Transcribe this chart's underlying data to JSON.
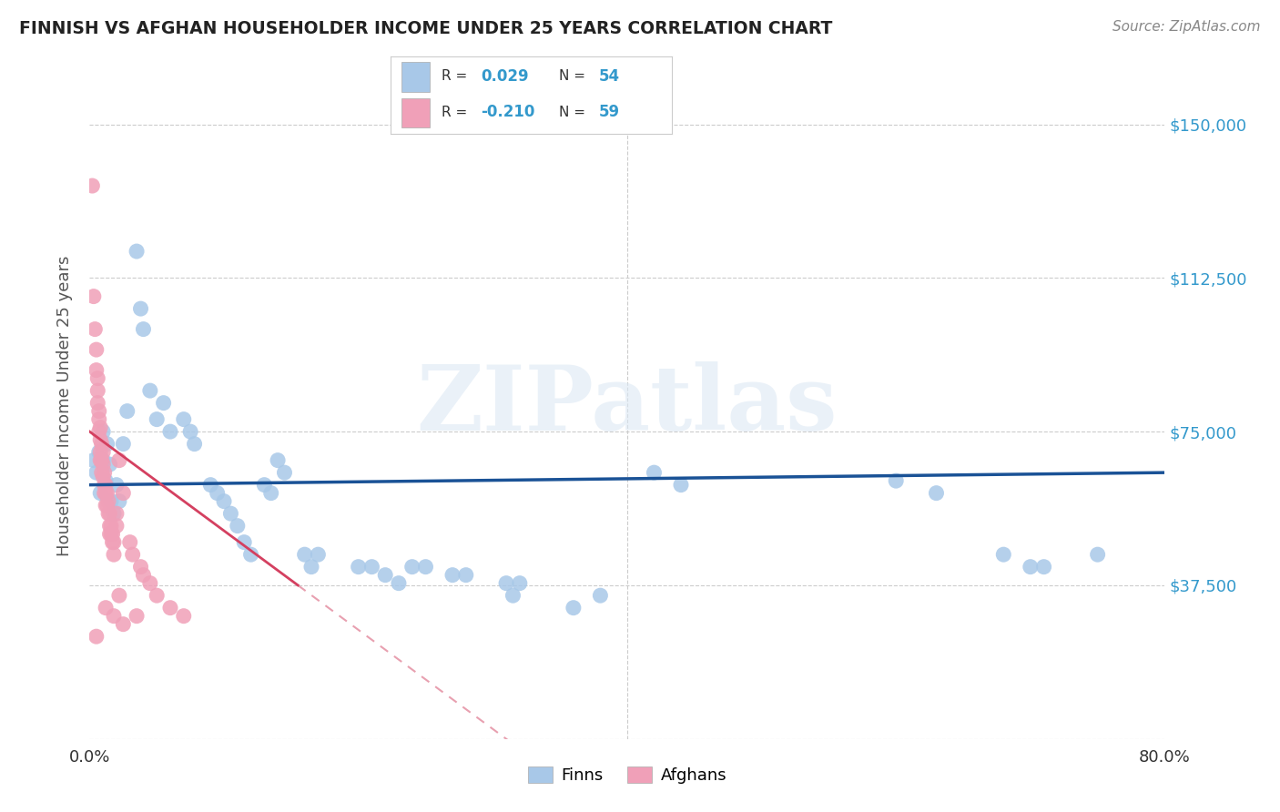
{
  "title": "FINNISH VS AFGHAN HOUSEHOLDER INCOME UNDER 25 YEARS CORRELATION CHART",
  "source": "Source: ZipAtlas.com",
  "ylabel": "Householder Income Under 25 years",
  "xlim": [
    0.0,
    0.8
  ],
  "ylim": [
    0,
    162500
  ],
  "yticks": [
    0,
    37500,
    75000,
    112500,
    150000
  ],
  "xticks": [
    0.0,
    0.1,
    0.2,
    0.3,
    0.4,
    0.5,
    0.6,
    0.7,
    0.8
  ],
  "finn_color": "#a8c8e8",
  "afghan_color": "#f0a0b8",
  "finn_line_color": "#1a5296",
  "afghan_line_solid_color": "#d44060",
  "afghan_line_dash_color": "#e8a0b0",
  "watermark_text": "ZIPatlas",
  "background_color": "#ffffff",
  "finn_scatter": [
    [
      0.003,
      68000
    ],
    [
      0.005,
      65000
    ],
    [
      0.007,
      70000
    ],
    [
      0.008,
      60000
    ],
    [
      0.01,
      75000
    ],
    [
      0.01,
      68000
    ],
    [
      0.012,
      63000
    ],
    [
      0.013,
      72000
    ],
    [
      0.015,
      67000
    ],
    [
      0.016,
      58000
    ],
    [
      0.018,
      55000
    ],
    [
      0.02,
      62000
    ],
    [
      0.022,
      58000
    ],
    [
      0.025,
      72000
    ],
    [
      0.028,
      80000
    ],
    [
      0.035,
      119000
    ],
    [
      0.038,
      105000
    ],
    [
      0.04,
      100000
    ],
    [
      0.045,
      85000
    ],
    [
      0.05,
      78000
    ],
    [
      0.055,
      82000
    ],
    [
      0.06,
      75000
    ],
    [
      0.07,
      78000
    ],
    [
      0.075,
      75000
    ],
    [
      0.078,
      72000
    ],
    [
      0.09,
      62000
    ],
    [
      0.095,
      60000
    ],
    [
      0.1,
      58000
    ],
    [
      0.105,
      55000
    ],
    [
      0.11,
      52000
    ],
    [
      0.115,
      48000
    ],
    [
      0.12,
      45000
    ],
    [
      0.13,
      62000
    ],
    [
      0.135,
      60000
    ],
    [
      0.14,
      68000
    ],
    [
      0.145,
      65000
    ],
    [
      0.16,
      45000
    ],
    [
      0.165,
      42000
    ],
    [
      0.17,
      45000
    ],
    [
      0.2,
      42000
    ],
    [
      0.21,
      42000
    ],
    [
      0.22,
      40000
    ],
    [
      0.23,
      38000
    ],
    [
      0.24,
      42000
    ],
    [
      0.25,
      42000
    ],
    [
      0.27,
      40000
    ],
    [
      0.28,
      40000
    ],
    [
      0.31,
      38000
    ],
    [
      0.315,
      35000
    ],
    [
      0.32,
      38000
    ],
    [
      0.36,
      32000
    ],
    [
      0.38,
      35000
    ],
    [
      0.42,
      65000
    ],
    [
      0.44,
      62000
    ],
    [
      0.6,
      63000
    ],
    [
      0.63,
      60000
    ],
    [
      0.68,
      45000
    ],
    [
      0.7,
      42000
    ],
    [
      0.71,
      42000
    ],
    [
      0.75,
      45000
    ]
  ],
  "afghan_scatter": [
    [
      0.002,
      135000
    ],
    [
      0.003,
      108000
    ],
    [
      0.004,
      100000
    ],
    [
      0.005,
      95000
    ],
    [
      0.005,
      90000
    ],
    [
      0.006,
      88000
    ],
    [
      0.006,
      85000
    ],
    [
      0.006,
      82000
    ],
    [
      0.007,
      80000
    ],
    [
      0.007,
      78000
    ],
    [
      0.007,
      75000
    ],
    [
      0.008,
      76000
    ],
    [
      0.008,
      73000
    ],
    [
      0.008,
      70000
    ],
    [
      0.008,
      68000
    ],
    [
      0.009,
      72000
    ],
    [
      0.009,
      68000
    ],
    [
      0.009,
      65000
    ],
    [
      0.01,
      70000
    ],
    [
      0.01,
      67000
    ],
    [
      0.01,
      64000
    ],
    [
      0.011,
      65000
    ],
    [
      0.011,
      62000
    ],
    [
      0.011,
      60000
    ],
    [
      0.012,
      62000
    ],
    [
      0.012,
      60000
    ],
    [
      0.012,
      57000
    ],
    [
      0.013,
      60000
    ],
    [
      0.013,
      57000
    ],
    [
      0.014,
      58000
    ],
    [
      0.014,
      55000
    ],
    [
      0.015,
      55000
    ],
    [
      0.015,
      52000
    ],
    [
      0.015,
      50000
    ],
    [
      0.016,
      52000
    ],
    [
      0.016,
      50000
    ],
    [
      0.017,
      50000
    ],
    [
      0.017,
      48000
    ],
    [
      0.018,
      48000
    ],
    [
      0.018,
      45000
    ],
    [
      0.02,
      55000
    ],
    [
      0.02,
      52000
    ],
    [
      0.022,
      68000
    ],
    [
      0.025,
      60000
    ],
    [
      0.03,
      48000
    ],
    [
      0.032,
      45000
    ],
    [
      0.038,
      42000
    ],
    [
      0.04,
      40000
    ],
    [
      0.045,
      38000
    ],
    [
      0.05,
      35000
    ],
    [
      0.06,
      32000
    ],
    [
      0.07,
      30000
    ],
    [
      0.005,
      25000
    ],
    [
      0.018,
      30000
    ],
    [
      0.025,
      28000
    ],
    [
      0.035,
      30000
    ],
    [
      0.012,
      32000
    ],
    [
      0.022,
      35000
    ]
  ]
}
